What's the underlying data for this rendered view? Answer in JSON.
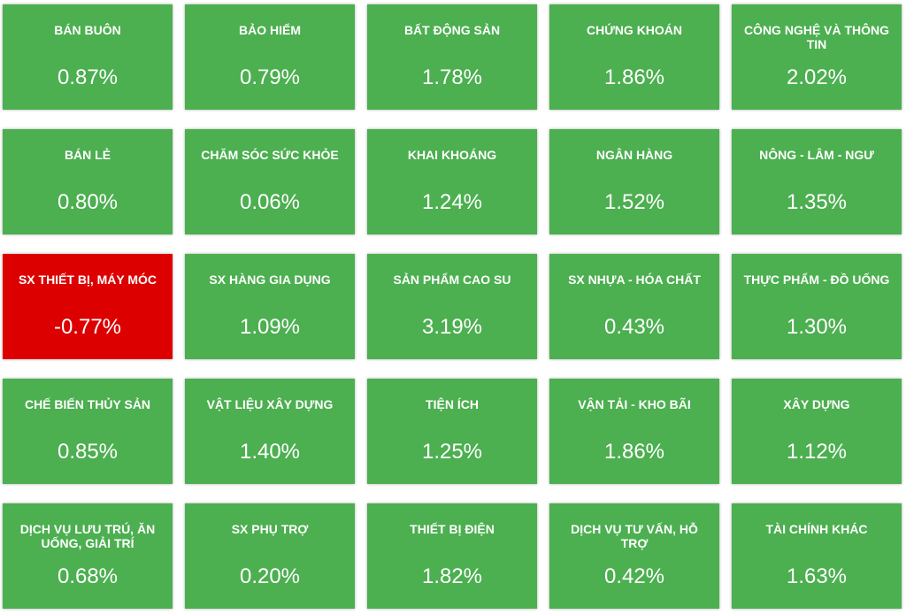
{
  "colors": {
    "positive": "#4caf50",
    "negative": "#dd0000"
  },
  "tiles": [
    {
      "name": "BÁN BUÔN",
      "change": "0.87%"
    },
    {
      "name": "BẢO HIỂM",
      "change": "0.79%"
    },
    {
      "name": "BẤT ĐỘNG SẢN",
      "change": "1.78%"
    },
    {
      "name": "CHỨNG KHOÁN",
      "change": "1.86%"
    },
    {
      "name": "CÔNG NGHỆ VÀ THÔNG TIN",
      "change": "2.02%"
    },
    {
      "name": "BÁN LẺ",
      "change": "0.80%"
    },
    {
      "name": "CHĂM SÓC SỨC KHỎE",
      "change": "0.06%"
    },
    {
      "name": "KHAI KHOÁNG",
      "change": "1.24%"
    },
    {
      "name": "NGÂN HÀNG",
      "change": "1.52%"
    },
    {
      "name": "NÔNG - LÂM - NGƯ",
      "change": "1.35%"
    },
    {
      "name": "SX THIẾT BỊ, MÁY MÓC",
      "change": "-0.77%"
    },
    {
      "name": "SX HÀNG GIA DỤNG",
      "change": "1.09%"
    },
    {
      "name": "SẢN PHẨM CAO SU",
      "change": "3.19%"
    },
    {
      "name": "SX NHỰA - HÓA CHẤT",
      "change": "0.43%"
    },
    {
      "name": "THỰC PHẨM - ĐỒ UỐNG",
      "change": "1.30%"
    },
    {
      "name": "CHẾ BIẾN THỦY SẢN",
      "change": "0.85%"
    },
    {
      "name": "VẬT LIỆU XÂY DỰNG",
      "change": "1.40%"
    },
    {
      "name": "TIỆN ÍCH",
      "change": "1.25%"
    },
    {
      "name": "VẬN TẢI - KHO BÃI",
      "change": "1.86%"
    },
    {
      "name": "XÂY DỰNG",
      "change": "1.12%"
    },
    {
      "name": "DỊCH VỤ LƯU TRÚ, ĂN UỐNG, GIẢI TRÍ",
      "change": "0.68%"
    },
    {
      "name": "SX PHỤ TRỢ",
      "change": "0.20%"
    },
    {
      "name": "THIẾT BỊ ĐIỆN",
      "change": "1.82%"
    },
    {
      "name": "DỊCH VỤ TƯ VẤN, HỖ TRỢ",
      "change": "0.42%"
    },
    {
      "name": "TÀI CHÍNH KHÁC",
      "change": "1.63%"
    }
  ]
}
